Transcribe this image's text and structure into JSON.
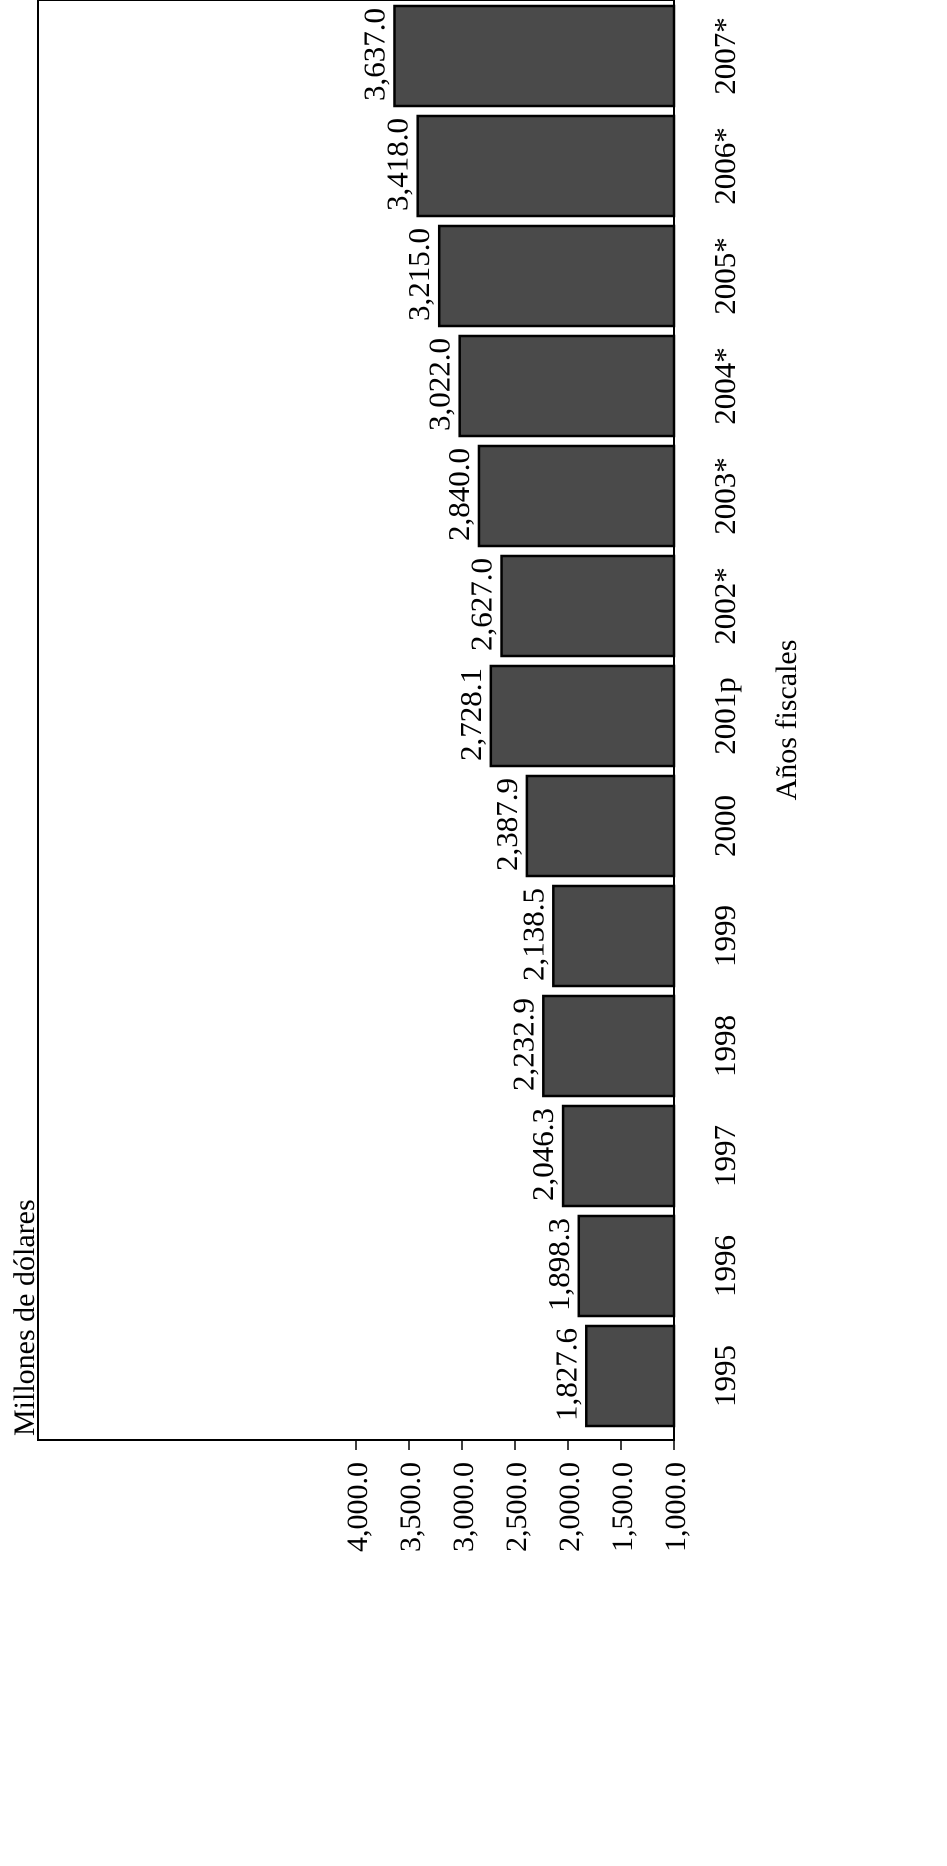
{
  "chart_data": {
    "type": "bar",
    "orientation": "horizontal",
    "title": "",
    "ylabel": "Millones de dólares",
    "xlabel": "Años fiscales",
    "ylim": [
      1000,
      4000
    ],
    "yticks": [
      "1,000.0",
      "1,500.0",
      "2,000.0",
      "2,500.0",
      "3,000.0",
      "3,500.0",
      "4,000.0"
    ],
    "categories": [
      "1995",
      "1996",
      "1997",
      "1998",
      "1999",
      "2000",
      "2001p",
      "2002*",
      "2003*",
      "2004*",
      "2005*",
      "2006*",
      "2007*"
    ],
    "values": [
      1827.6,
      1898.3,
      2046.3,
      2232.9,
      2138.5,
      2387.9,
      2728.1,
      2627.0,
      2840.0,
      3022.0,
      3215.0,
      3418.0,
      3637.0
    ],
    "value_labels": [
      "1,827.6",
      "1,898.3",
      "2,046.3",
      "2,232.9",
      "2,138.5",
      "2,387.9",
      "2,728.1",
      "2,627.0",
      "2,840.0",
      "3,022.0",
      "3,215.0",
      "3,418.0",
      "3,637.0"
    ],
    "bar_color": "#4a4a4a",
    "grid": false,
    "legend": "none"
  }
}
